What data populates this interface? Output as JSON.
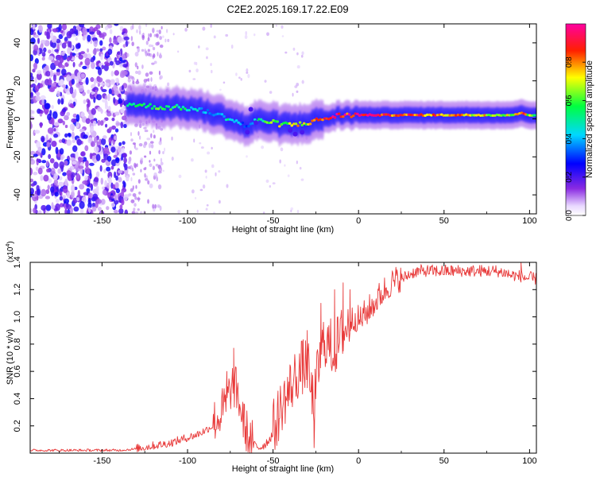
{
  "title": "C2E2.2025.169.17.22.E09",
  "colors": {
    "snr_line": "#e83a3a",
    "frame": "#000000",
    "background": "#ffffff"
  },
  "chart_data": [
    {
      "type": "heatmap",
      "title": "C2E2.2025.169.17.22.E09",
      "xlabel": "Height of straight line (km)",
      "ylabel": "Frequency (Hz)",
      "xlim": [
        -192,
        104
      ],
      "ylim": [
        -50,
        50
      ],
      "xticks": [
        -150,
        -100,
        -50,
        0,
        50,
        100
      ],
      "xtick_labels": [
        "-150",
        "-100",
        "-50",
        "0",
        "50",
        "100"
      ],
      "yticks": [
        -40,
        -20,
        0,
        20,
        40
      ],
      "ytick_labels": [
        "-40",
        "-20",
        "0",
        "20",
        "40"
      ],
      "colorbar": {
        "label": "Normalized spectral amplitude",
        "range": [
          0,
          1
        ],
        "ticks": [
          0.0,
          0.2,
          0.4,
          0.6,
          0.8
        ],
        "tick_labels": [
          "0.0",
          "0.2",
          "0.4",
          "0.6",
          "0.8"
        ],
        "colormap": "rainbow (white-purple-blue-cyan-green-yellow-red-magenta)"
      },
      "noise_region_x": [
        -192,
        -135
      ],
      "ridge": {
        "x": [
          -135,
          -125,
          -115,
          -105,
          -95,
          -85,
          -75,
          -70,
          -65,
          -60,
          -55,
          -50,
          -45,
          -40,
          -35,
          -30,
          -25,
          -20,
          -15,
          -10,
          -5,
          0,
          10,
          20,
          30,
          40,
          50,
          60,
          70,
          80,
          90,
          95,
          100,
          104
        ],
        "freq_hz": [
          8,
          7,
          6,
          6,
          5,
          3,
          0,
          -2,
          -4,
          -1,
          -1,
          -2,
          -3,
          -3,
          -3,
          -2,
          -1,
          0,
          1,
          2,
          2,
          2,
          2,
          2,
          2,
          2,
          2,
          2,
          2,
          2,
          2,
          3,
          2,
          2
        ],
        "peak_amplitude": [
          0.5,
          0.55,
          0.6,
          0.55,
          0.45,
          0.4,
          0.5,
          0.4,
          0.3,
          0.5,
          0.55,
          0.7,
          0.7,
          0.7,
          0.75,
          0.7,
          0.8,
          0.9,
          0.95,
          0.95,
          0.95,
          0.95,
          0.95,
          0.9,
          0.9,
          0.85,
          0.85,
          0.8,
          0.75,
          0.75,
          0.7,
          0.95,
          0.65,
          0.6
        ]
      }
    },
    {
      "type": "line",
      "xlabel": "Height of straight line (km)",
      "ylabel": "SNR (10 * v/v)",
      "y_multiplier": "(x10^4)",
      "xlim": [
        -192,
        104
      ],
      "ylim": [
        0,
        1.4
      ],
      "xticks": [
        -150,
        -100,
        -50,
        0,
        50,
        100
      ],
      "xtick_labels": [
        "-150",
        "-100",
        "-50",
        "0",
        "50",
        "100"
      ],
      "yticks": [
        0.2,
        0.4,
        0.6,
        0.8,
        1.0,
        1.2,
        1.4
      ],
      "ytick_labels": [
        "0.2",
        "0.4",
        "0.6",
        "0.8",
        "1.0",
        "1.2",
        "1.4"
      ],
      "series": [
        {
          "x": [
            -192,
            -180,
            -170,
            -160,
            -150,
            -140,
            -130,
            -125,
            -120,
            -115,
            -110,
            -105,
            -100,
            -95,
            -90,
            -85,
            -80,
            -78,
            -76,
            -74,
            -72,
            -70,
            -68,
            -66,
            -64,
            -62,
            -60,
            -58,
            -56,
            -54,
            -52,
            -50,
            -48,
            -46,
            -44,
            -42,
            -40,
            -38,
            -36,
            -34,
            -32,
            -30,
            -28,
            -26,
            -24,
            -22,
            -20,
            -18,
            -16,
            -14,
            -12,
            -10,
            -8,
            -6,
            -4,
            -2,
            0,
            5,
            10,
            15,
            20,
            25,
            30,
            35,
            40,
            50,
            60,
            70,
            80,
            85,
            90,
            95,
            100,
            104
          ],
          "values": [
            0.02,
            0.02,
            0.02,
            0.02,
            0.02,
            0.02,
            0.03,
            0.04,
            0.05,
            0.06,
            0.07,
            0.09,
            0.11,
            0.13,
            0.16,
            0.2,
            0.28,
            0.34,
            0.4,
            0.47,
            0.45,
            0.38,
            0.25,
            0.15,
            0.09,
            0.06,
            0.05,
            0.04,
            0.05,
            0.07,
            0.1,
            0.14,
            0.2,
            0.28,
            0.35,
            0.4,
            0.45,
            0.5,
            0.55,
            0.58,
            0.6,
            0.62,
            0.45,
            0.3,
            0.55,
            0.72,
            0.8,
            0.78,
            0.74,
            0.73,
            0.78,
            0.83,
            0.9,
            0.92,
            0.96,
            0.98,
            0.96,
            1.02,
            1.1,
            1.18,
            1.24,
            1.27,
            1.31,
            1.33,
            1.33,
            1.33,
            1.33,
            1.33,
            1.33,
            1.32,
            1.3,
            1.29,
            1.28,
            1.27
          ],
          "spikes": [
            {
              "x": -73,
              "y": 0.77
            },
            {
              "x": -77,
              "y": 0.6
            },
            {
              "x": -30,
              "y": 0.9
            },
            {
              "x": -33,
              "y": 0.82
            },
            {
              "x": -26,
              "y": 0.04
            },
            {
              "x": -22,
              "y": 1.1
            },
            {
              "x": -14,
              "y": 1.2
            },
            {
              "x": -9,
              "y": 1.25
            },
            {
              "x": -5,
              "y": 1.2
            },
            {
              "x": 95,
              "y": 1.4
            }
          ]
        }
      ]
    }
  ]
}
